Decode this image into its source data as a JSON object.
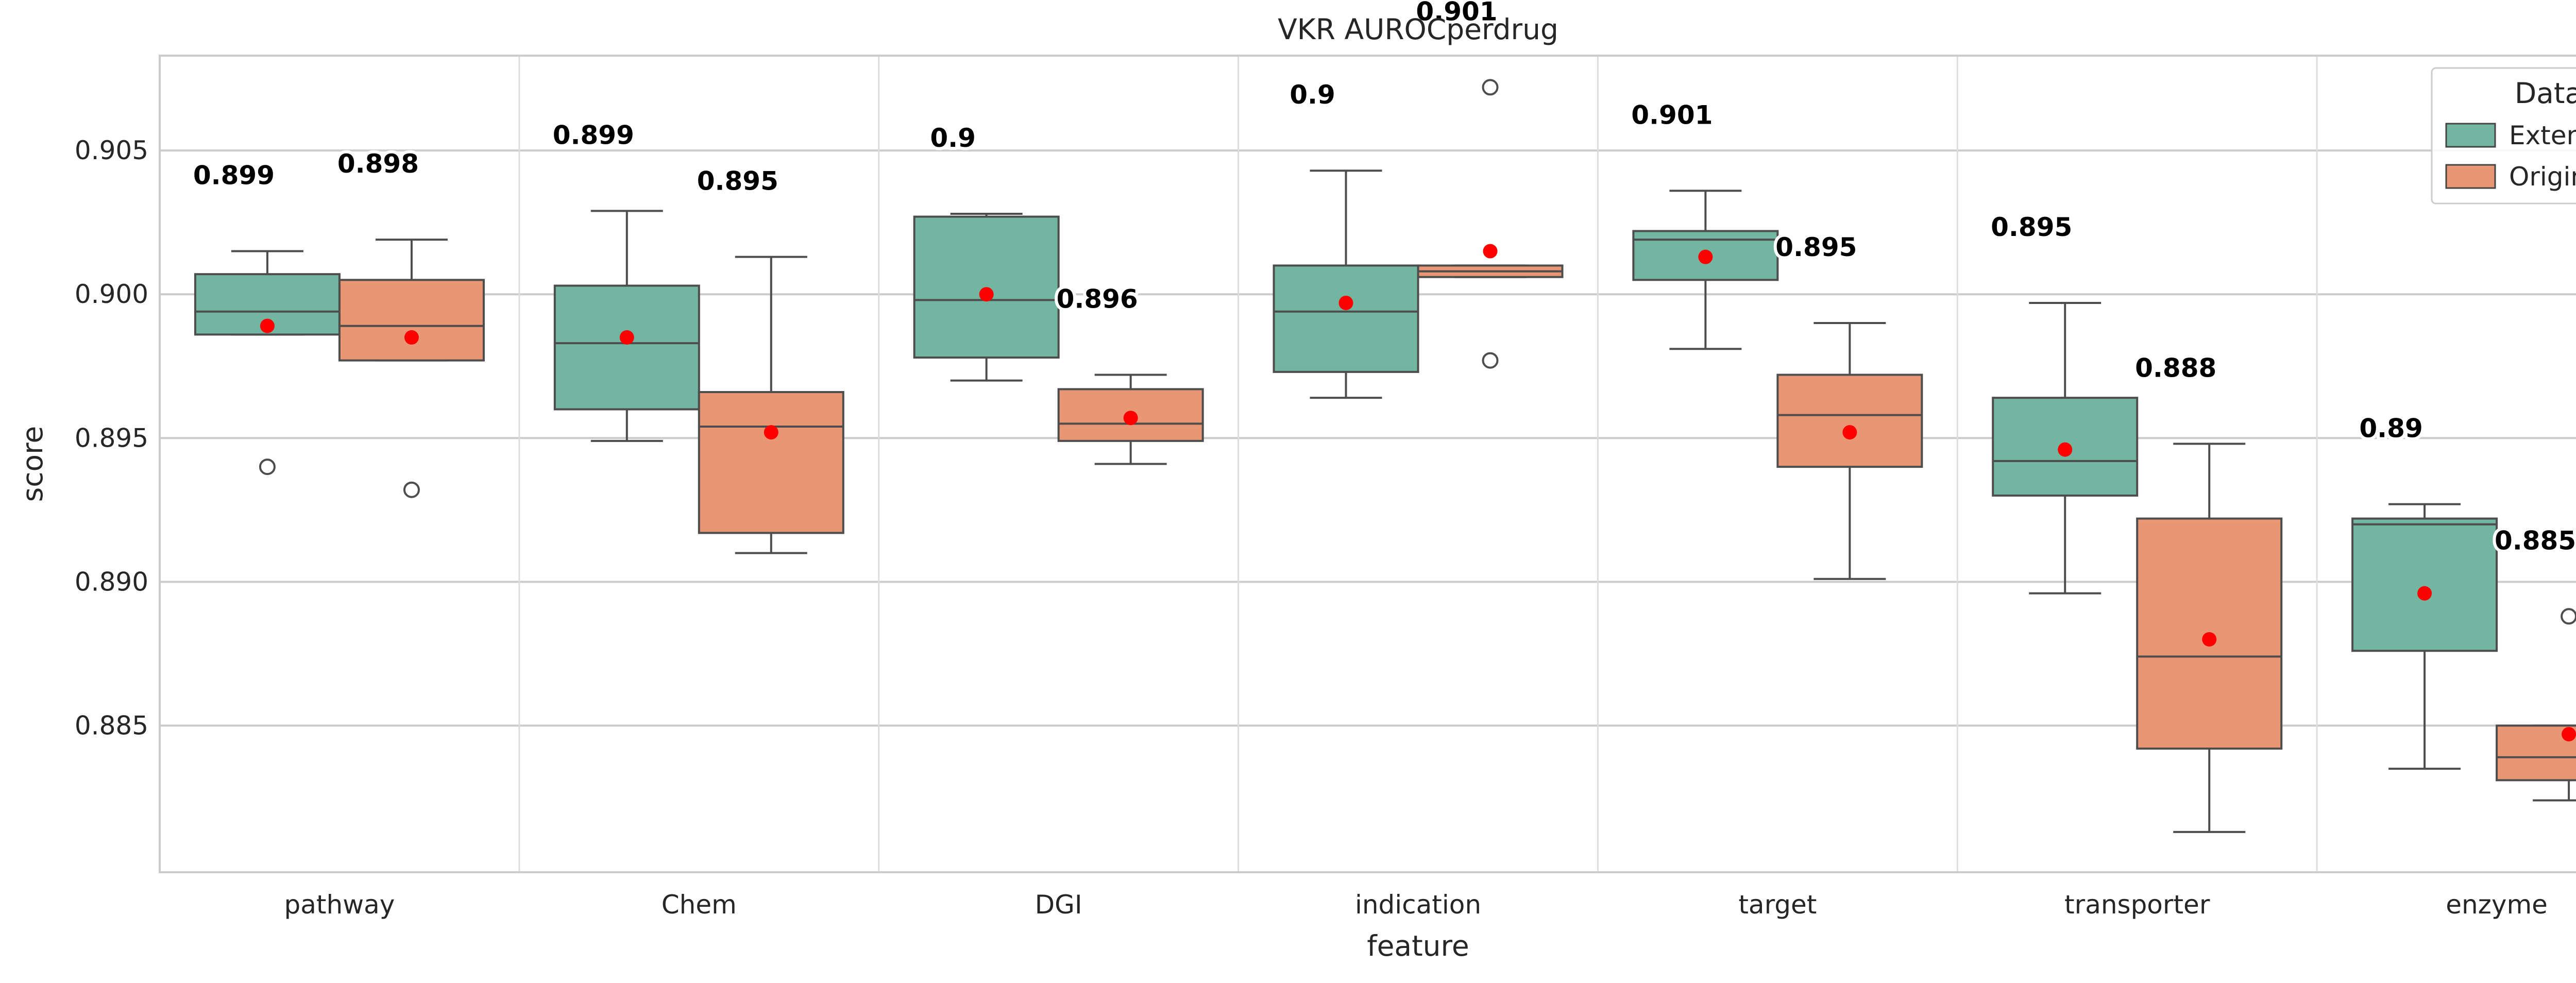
{
  "chart_data": {
    "type": "box",
    "title": "VKR AUROCperdrug",
    "xlabel": "feature",
    "ylabel": "score",
    "ylim": [
      0.8799,
      0.9083
    ],
    "y_ticks": [
      "0.885",
      "0.890",
      "0.895",
      "0.900",
      "0.905"
    ],
    "grid": true,
    "legend": {
      "title": "Data",
      "placement": "top-right",
      "entries": [
        {
          "name": "Extended",
          "color": "#66c2a5"
        },
        {
          "name": "Original",
          "color": "#fc8d62"
        }
      ]
    },
    "categories": [
      "pathway",
      "Chem",
      "DGI",
      "indication",
      "target",
      "transporter",
      "enzyme"
    ],
    "series": [
      {
        "name": "Extended",
        "color": "#72b6a1",
        "boxes": [
          {
            "whisker_low": 0.8986,
            "q1": 0.8986,
            "median": 0.8994,
            "q3": 0.9007,
            "whisker_high": 0.9015,
            "mean": 0.8989,
            "outliers": [
              0.894
            ],
            "mean_label": "0.899"
          },
          {
            "whisker_low": 0.8949,
            "q1": 0.896,
            "median": 0.8983,
            "q3": 0.9003,
            "whisker_high": 0.9029,
            "mean": 0.8985,
            "outliers": [],
            "mean_label": "0.899"
          },
          {
            "whisker_low": 0.897,
            "q1": 0.8978,
            "median": 0.8998,
            "q3": 0.9027,
            "whisker_high": 0.9028,
            "mean": 0.9,
            "outliers": [],
            "mean_label": "0.9"
          },
          {
            "whisker_low": 0.8964,
            "q1": 0.8973,
            "median": 0.8994,
            "q3": 0.901,
            "whisker_high": 0.9043,
            "mean": 0.8997,
            "outliers": [],
            "mean_label": "0.9"
          },
          {
            "whisker_low": 0.8981,
            "q1": 0.9005,
            "median": 0.9019,
            "q3": 0.9022,
            "whisker_high": 0.9036,
            "mean": 0.9013,
            "outliers": [],
            "mean_label": "0.901"
          },
          {
            "whisker_low": 0.8896,
            "q1": 0.893,
            "median": 0.8942,
            "q3": 0.8964,
            "whisker_high": 0.8997,
            "mean": 0.8946,
            "outliers": [],
            "mean_label": "0.895"
          },
          {
            "whisker_low": 0.8835,
            "q1": 0.8876,
            "median": 0.892,
            "q3": 0.8922,
            "whisker_high": 0.8927,
            "mean": 0.8896,
            "outliers": [],
            "mean_label": "0.89"
          }
        ]
      },
      {
        "name": "Original",
        "color": "#e99675",
        "boxes": [
          {
            "whisker_low": 0.8977,
            "q1": 0.8977,
            "median": 0.8989,
            "q3": 0.9005,
            "whisker_high": 0.9019,
            "mean": 0.8985,
            "outliers": [
              0.8932
            ],
            "mean_label": "0.898"
          },
          {
            "whisker_low": 0.891,
            "q1": 0.8917,
            "median": 0.8954,
            "q3": 0.8966,
            "whisker_high": 0.9013,
            "mean": 0.8952,
            "outliers": [],
            "mean_label": "0.895"
          },
          {
            "whisker_low": 0.8941,
            "q1": 0.8949,
            "median": 0.8955,
            "q3": 0.8967,
            "whisker_high": 0.8972,
            "mean": 0.8957,
            "outliers": [],
            "mean_label": "0.896"
          },
          {
            "whisker_low": 0.9006,
            "q1": 0.9006,
            "median": 0.9008,
            "q3": 0.901,
            "whisker_high": 0.901,
            "mean": 0.9015,
            "outliers": [
              0.8977,
              0.9072
            ],
            "mean_label": "0.901"
          },
          {
            "whisker_low": 0.8901,
            "q1": 0.894,
            "median": 0.8958,
            "q3": 0.8972,
            "whisker_high": 0.899,
            "mean": 0.8952,
            "outliers": [],
            "mean_label": "0.895"
          },
          {
            "whisker_low": 0.8813,
            "q1": 0.8842,
            "median": 0.8874,
            "q3": 0.8922,
            "whisker_high": 0.8948,
            "mean": 0.888,
            "outliers": [],
            "mean_label": "0.888"
          },
          {
            "whisker_low": 0.8824,
            "q1": 0.8831,
            "median": 0.8839,
            "q3": 0.885,
            "whisker_high": 0.885,
            "mean": 0.8847,
            "outliers": [
              0.8888
            ],
            "mean_label": "0.885"
          }
        ]
      }
    ]
  }
}
